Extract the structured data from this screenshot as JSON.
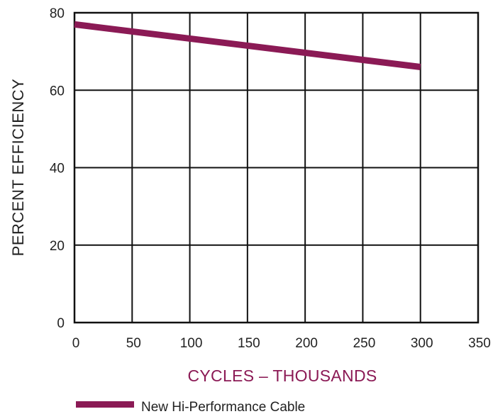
{
  "chart_data": {
    "type": "line",
    "title": "",
    "xlabel": "CYCLES – THOUSANDS",
    "ylabel": "PERCENT EFFICIENCY",
    "xlim": [
      0,
      350
    ],
    "ylim": [
      0,
      80
    ],
    "x_ticks": [
      "0",
      "50",
      "100",
      "150",
      "200",
      "250",
      "300",
      "350"
    ],
    "y_ticks": [
      "0",
      "20",
      "40",
      "60",
      "80"
    ],
    "grid": true,
    "legend_position": "bottom-left",
    "series": [
      {
        "name": "New Hi-Performance Cable",
        "color": "#8b1a55",
        "x": [
          0,
          300
        ],
        "y": [
          77,
          66
        ]
      }
    ],
    "colors": {
      "xlabel": "#8b1a55",
      "grid": "#111111"
    }
  }
}
